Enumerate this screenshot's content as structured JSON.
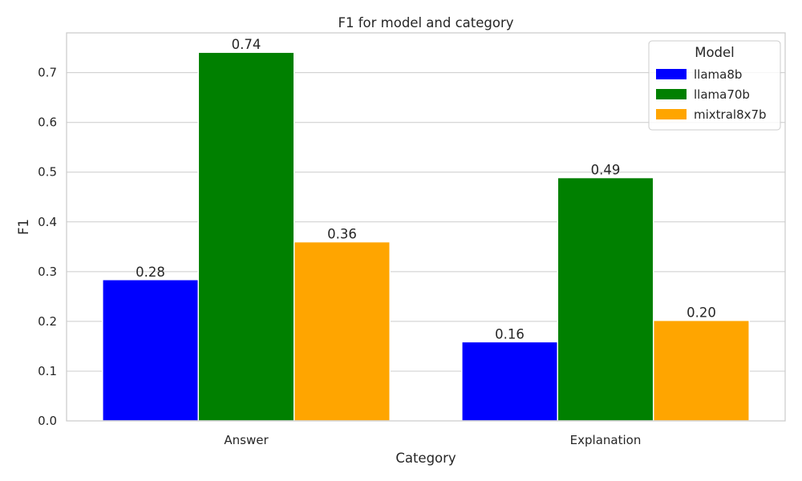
{
  "chart_data": {
    "type": "bar",
    "title": "F1 for model and category",
    "xlabel": "Category",
    "ylabel": "F1",
    "categories": [
      "Answer",
      "Explanation"
    ],
    "series": [
      {
        "name": "llama8b",
        "color": "#0000ff",
        "values": [
          0.284,
          0.159
        ],
        "labels": [
          "0.28",
          "0.16"
        ]
      },
      {
        "name": "llama70b",
        "color": "#008000",
        "values": [
          0.741,
          0.489
        ],
        "labels": [
          "0.74",
          "0.49"
        ]
      },
      {
        "name": "mixtral8x7b",
        "color": "#ffa500",
        "values": [
          0.36,
          0.202
        ],
        "labels": [
          "0.36",
          "0.20"
        ]
      }
    ],
    "ylim": [
      0,
      0.78
    ],
    "yticks": [
      "0.0",
      "0.1",
      "0.2",
      "0.3",
      "0.4",
      "0.5",
      "0.6",
      "0.7"
    ],
    "grid": true,
    "legend": {
      "title": "Model",
      "placement": "top-right"
    }
  }
}
